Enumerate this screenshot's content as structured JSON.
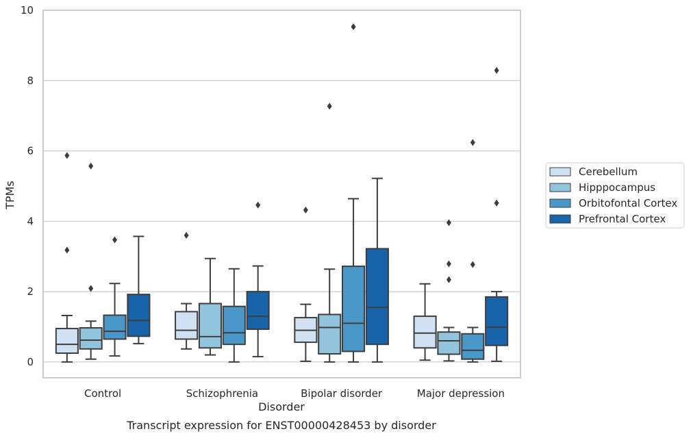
{
  "chart_data": {
    "type": "box",
    "title": "",
    "caption": "Transcript expression for ENST00000428453 by disorder",
    "xlabel": "Disorder",
    "ylabel": "TPMs",
    "ylim": [
      -0.45,
      10
    ],
    "yticks": [
      0,
      2,
      4,
      6,
      8,
      10
    ],
    "grid": "horizontal",
    "legend_position": "right",
    "categories": [
      "Control",
      "Schizophrenia",
      "Bipolar disorder",
      "Major depression"
    ],
    "series": [
      {
        "name": "Cerebellum",
        "color": "#cfe1f2",
        "boxes": [
          {
            "whislo": 0.0,
            "q1": 0.25,
            "med": 0.5,
            "q3": 0.95,
            "whishi": 1.32,
            "fliers": [
              3.18,
              5.87
            ]
          },
          {
            "whislo": 0.37,
            "q1": 0.65,
            "med": 0.9,
            "q3": 1.43,
            "whishi": 1.66,
            "fliers": [
              3.6
            ]
          },
          {
            "whislo": 0.02,
            "q1": 0.56,
            "med": 0.9,
            "q3": 1.26,
            "whishi": 1.64,
            "fliers": [
              4.32
            ]
          },
          {
            "whislo": 0.05,
            "q1": 0.4,
            "med": 0.82,
            "q3": 1.3,
            "whishi": 2.22,
            "fliers": []
          }
        ]
      },
      {
        "name": "Hipppocampus",
        "color": "#93c4de",
        "boxes": [
          {
            "whislo": 0.08,
            "q1": 0.37,
            "med": 0.62,
            "q3": 0.97,
            "whishi": 1.16,
            "fliers": [
              2.09,
              5.57
            ]
          },
          {
            "whislo": 0.2,
            "q1": 0.4,
            "med": 0.72,
            "q3": 1.66,
            "whishi": 2.94,
            "fliers": []
          },
          {
            "whislo": 0.0,
            "q1": 0.23,
            "med": 0.98,
            "q3": 1.35,
            "whishi": 2.64,
            "fliers": [
              7.27
            ]
          },
          {
            "whislo": 0.03,
            "q1": 0.22,
            "med": 0.6,
            "q3": 0.85,
            "whishi": 0.98,
            "fliers": [
              2.34,
              2.79,
              3.96
            ]
          }
        ]
      },
      {
        "name": "Orbitofontal Cortex",
        "color": "#4a98c9",
        "boxes": [
          {
            "whislo": 0.17,
            "q1": 0.65,
            "med": 0.87,
            "q3": 1.33,
            "whishi": 2.23,
            "fliers": [
              3.47
            ]
          },
          {
            "whislo": 0.0,
            "q1": 0.5,
            "med": 0.83,
            "q3": 1.58,
            "whishi": 2.65,
            "fliers": []
          },
          {
            "whislo": 0.0,
            "q1": 0.3,
            "med": 1.1,
            "q3": 2.72,
            "whishi": 4.64,
            "fliers": [
              9.53
            ]
          },
          {
            "whislo": 0.0,
            "q1": 0.08,
            "med": 0.33,
            "q3": 0.8,
            "whishi": 0.98,
            "fliers": [
              2.77,
              6.24
            ]
          }
        ]
      },
      {
        "name": "Prefrontal Cortex",
        "color": "#1764ab",
        "boxes": [
          {
            "whislo": 0.52,
            "q1": 0.73,
            "med": 1.18,
            "q3": 1.92,
            "whishi": 3.57,
            "fliers": []
          },
          {
            "whislo": 0.15,
            "q1": 0.93,
            "med": 1.3,
            "q3": 2.0,
            "whishi": 2.73,
            "fliers": [
              4.46
            ]
          },
          {
            "whislo": 0.0,
            "q1": 0.5,
            "med": 1.55,
            "q3": 3.22,
            "whishi": 5.22,
            "fliers": []
          },
          {
            "whislo": 0.02,
            "q1": 0.47,
            "med": 0.99,
            "q3": 1.85,
            "whishi": 2.0,
            "fliers": [
              4.52,
              8.29
            ]
          }
        ]
      }
    ]
  }
}
